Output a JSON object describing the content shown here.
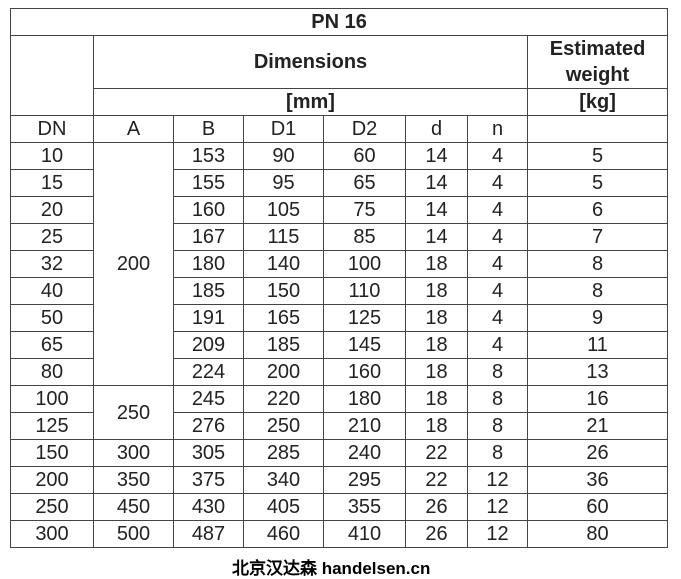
{
  "title": "PN 16",
  "dimensions_label": "Dimensions",
  "dimensions_unit": "[mm]",
  "weight_label_1": "Estimated",
  "weight_label_2": "weight",
  "weight_unit": "[kg]",
  "columns": [
    "DN",
    "A",
    "B",
    "D1",
    "D2",
    "d",
    "n"
  ],
  "a_groups": [
    "200",
    "250"
  ],
  "rows": [
    {
      "DN": "10",
      "A": "",
      "B": "153",
      "D1": "90",
      "D2": "60",
      "d": "14",
      "n": "4",
      "w": "5"
    },
    {
      "DN": "15",
      "A": "",
      "B": "155",
      "D1": "95",
      "D2": "65",
      "d": "14",
      "n": "4",
      "w": "5"
    },
    {
      "DN": "20",
      "A": "",
      "B": "160",
      "D1": "105",
      "D2": "75",
      "d": "14",
      "n": "4",
      "w": "6"
    },
    {
      "DN": "25",
      "A": "",
      "B": "167",
      "D1": "115",
      "D2": "85",
      "d": "14",
      "n": "4",
      "w": "7"
    },
    {
      "DN": "32",
      "A": "",
      "B": "180",
      "D1": "140",
      "D2": "100",
      "d": "18",
      "n": "4",
      "w": "8"
    },
    {
      "DN": "40",
      "A": "",
      "B": "185",
      "D1": "150",
      "D2": "110",
      "d": "18",
      "n": "4",
      "w": "8"
    },
    {
      "DN": "50",
      "A": "",
      "B": "191",
      "D1": "165",
      "D2": "125",
      "d": "18",
      "n": "4",
      "w": "9"
    },
    {
      "DN": "65",
      "A": "",
      "B": "209",
      "D1": "185",
      "D2": "145",
      "d": "18",
      "n": "4",
      "w": "11"
    },
    {
      "DN": "80",
      "A": "",
      "B": "224",
      "D1": "200",
      "D2": "160",
      "d": "18",
      "n": "8",
      "w": "13"
    },
    {
      "DN": "100",
      "A": "",
      "B": "245",
      "D1": "220",
      "D2": "180",
      "d": "18",
      "n": "8",
      "w": "16"
    },
    {
      "DN": "125",
      "A": "",
      "B": "276",
      "D1": "250",
      "D2": "210",
      "d": "18",
      "n": "8",
      "w": "21"
    },
    {
      "DN": "150",
      "A": "300",
      "B": "305",
      "D1": "285",
      "D2": "240",
      "d": "22",
      "n": "8",
      "w": "26"
    },
    {
      "DN": "200",
      "A": "350",
      "B": "375",
      "D1": "340",
      "D2": "295",
      "d": "22",
      "n": "12",
      "w": "36"
    },
    {
      "DN": "250",
      "A": "450",
      "B": "430",
      "D1": "405",
      "D2": "355",
      "d": "26",
      "n": "12",
      "w": "60"
    },
    {
      "DN": "300",
      "A": "500",
      "B": "487",
      "D1": "460",
      "D2": "410",
      "d": "26",
      "n": "12",
      "w": "80"
    }
  ],
  "watermark": "北京汉达森 handelsen.cn"
}
